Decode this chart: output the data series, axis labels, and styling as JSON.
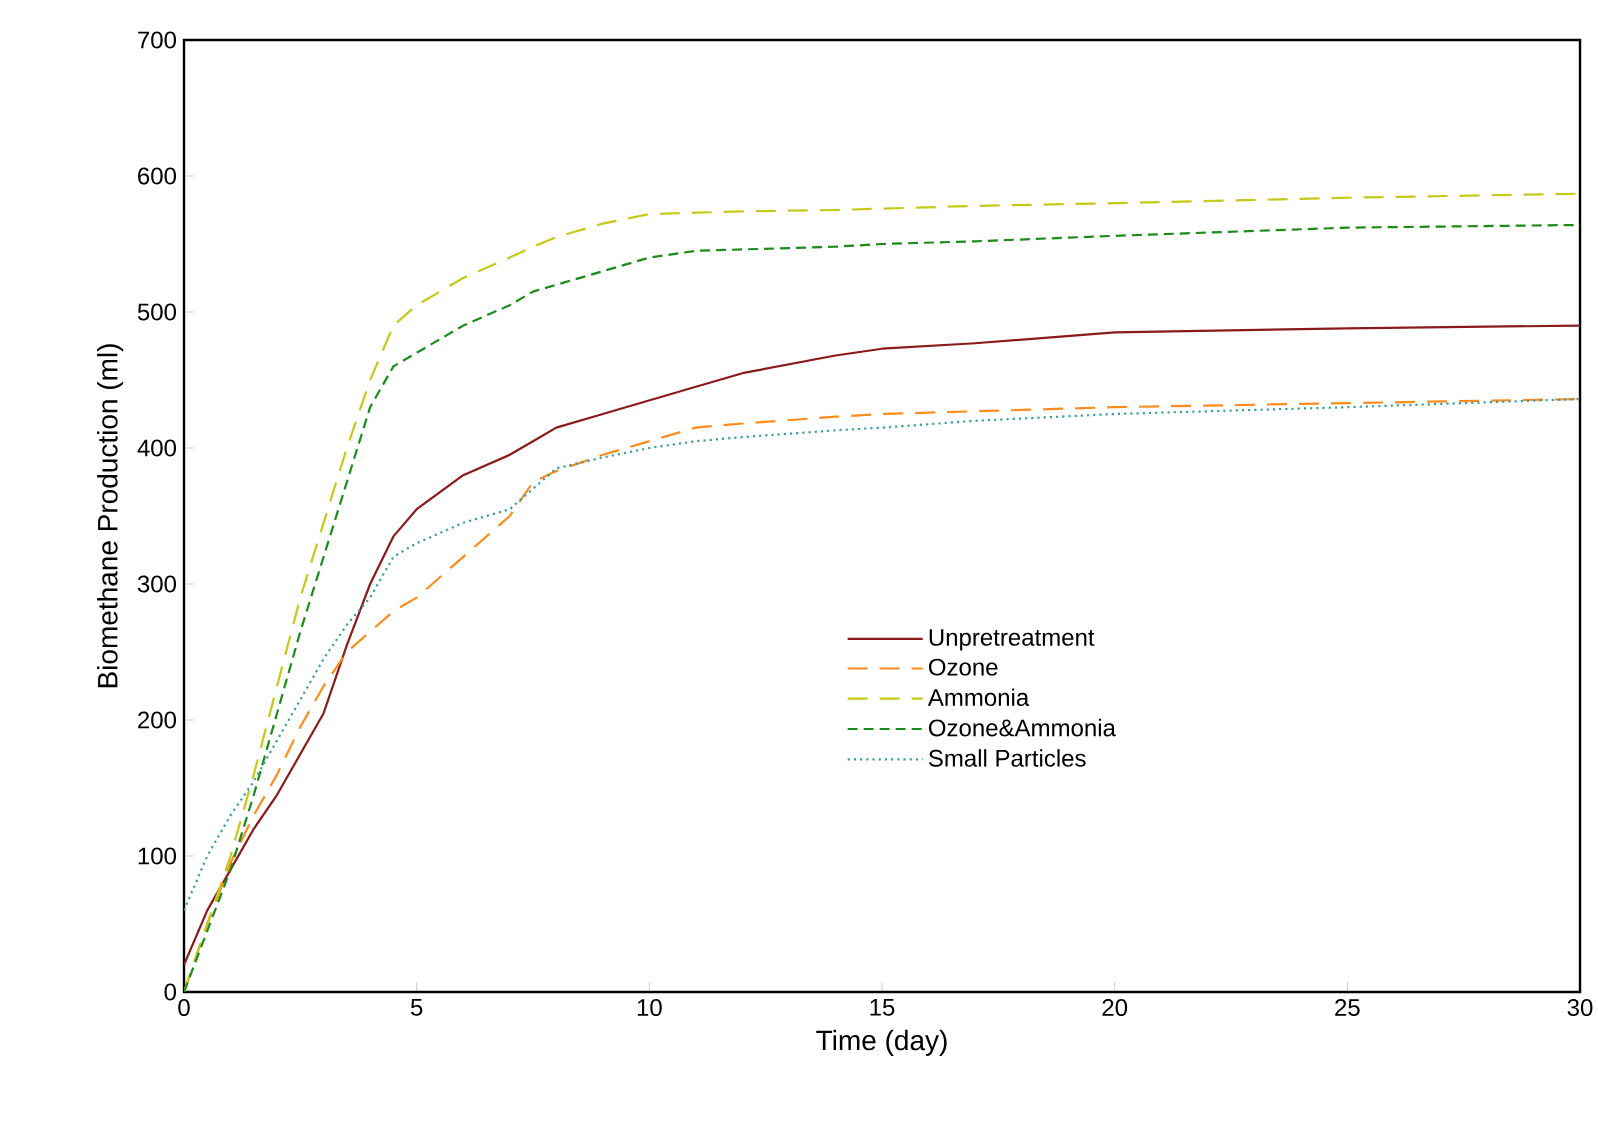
{
  "chart_data": {
    "type": "line",
    "xlabel": "Time (day)",
    "ylabel": "Biomethane Production (ml)",
    "xlim": [
      0,
      30
    ],
    "ylim": [
      0,
      700
    ],
    "xticks": [
      0,
      5,
      10,
      15,
      20,
      25,
      30
    ],
    "yticks": [
      0,
      100,
      200,
      300,
      400,
      500,
      600,
      700
    ],
    "grid": false,
    "legend": "right",
    "marker": "none",
    "x": [
      0,
      0.5,
      1,
      1.5,
      2,
      2.5,
      3,
      3.5,
      4,
      4.5,
      5,
      6,
      7,
      7.5,
      8,
      9,
      10,
      11,
      12,
      14,
      15,
      17,
      20,
      25,
      30
    ],
    "series": [
      {
        "name": "Unpretreatment",
        "color": "#8b1a1a",
        "line_style": "solid",
        "values": [
          20,
          60,
          90,
          120,
          145,
          175,
          205,
          255,
          300,
          335,
          355,
          380,
          395,
          405,
          415,
          425,
          435,
          445,
          455,
          468,
          473,
          477,
          485,
          488,
          490
        ]
      },
      {
        "name": "Ozone",
        "color": "#ff8c1a",
        "line_style": "longdash",
        "values": [
          0,
          50,
          95,
          130,
          160,
          195,
          225,
          250,
          265,
          280,
          290,
          320,
          350,
          375,
          383,
          395,
          405,
          415,
          418,
          423,
          425,
          427,
          430,
          433,
          436
        ]
      },
      {
        "name": "Ammonia",
        "color": "#c8c81a",
        "line_style": "longdash",
        "values": [
          0,
          50,
          100,
          160,
          225,
          290,
          345,
          400,
          450,
          490,
          505,
          525,
          540,
          548,
          555,
          565,
          572,
          573,
          574,
          575,
          576,
          578,
          580,
          584,
          587
        ]
      },
      {
        "name": "Ozone&Ammonia",
        "color": "#1a8c1a",
        "line_style": "dashed",
        "values": [
          0,
          45,
          90,
          145,
          205,
          265,
          320,
          375,
          430,
          460,
          470,
          490,
          505,
          515,
          520,
          530,
          540,
          545,
          546,
          548,
          550,
          552,
          556,
          562,
          564
        ]
      },
      {
        "name": "Small Particles",
        "color": "#3a9f9f",
        "line_style": "dotted",
        "values": [
          60,
          100,
          130,
          155,
          185,
          215,
          245,
          270,
          290,
          320,
          330,
          345,
          355,
          370,
          385,
          393,
          400,
          405,
          408,
          413,
          415,
          420,
          425,
          430,
          436
        ]
      }
    ]
  }
}
